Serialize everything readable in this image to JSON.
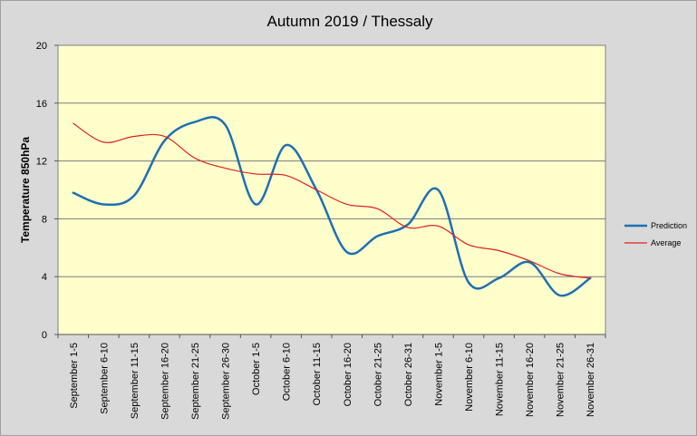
{
  "chart_data": {
    "type": "line",
    "title": "Autumn 2019 / Thessaly",
    "ylabel": "Temperature 850hPa",
    "xlabel": "",
    "ylim": [
      0,
      20
    ],
    "yticks": [
      0,
      4,
      8,
      12,
      16,
      20
    ],
    "grid": true,
    "legend_position": "right",
    "colors": {
      "plot_background": "#ffffcc",
      "outer_background": "#d9d9d9",
      "prediction": "#1f6fb4",
      "average": "#e02020"
    },
    "categories": [
      "September 1-5",
      "September 6-10",
      "September 11-15",
      "September 16-20",
      "September 21-25",
      "September 26-30",
      "October 1-5",
      "October 6-10",
      "October 11-15",
      "October 16-20",
      "October 21-25",
      "October 26-31",
      "November 1-5",
      "November 6-10",
      "November 11-15",
      "November 16-20",
      "November 21-25",
      "November 26-31"
    ],
    "series": [
      {
        "name": "Prediction",
        "values": [
          9.8,
          9.0,
          9.6,
          13.4,
          14.7,
          14.5,
          9.0,
          13.1,
          10.0,
          5.7,
          6.8,
          7.6,
          10.0,
          3.6,
          3.9,
          5.0,
          2.7,
          3.9
        ]
      },
      {
        "name": "Average",
        "values": [
          14.6,
          13.3,
          13.7,
          13.7,
          12.2,
          11.5,
          11.1,
          11.0,
          10.0,
          9.0,
          8.7,
          7.4,
          7.5,
          6.2,
          5.8,
          5.1,
          4.2,
          3.9
        ]
      }
    ]
  }
}
